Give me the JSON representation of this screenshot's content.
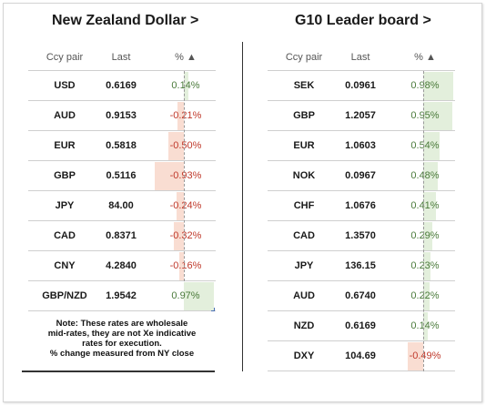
{
  "left": {
    "title": "New Zealand Dollar >",
    "headers": {
      "pair": "Ccy pair",
      "last": "Last",
      "pct": "% ▲"
    },
    "rows": [
      {
        "pair": "USD",
        "last": "0.6169",
        "pct": "0.14%",
        "value": 0.14
      },
      {
        "pair": "AUD",
        "last": "0.9153",
        "pct": "-0.21%",
        "value": -0.21
      },
      {
        "pair": "EUR",
        "last": "0.5818",
        "pct": "-0.50%",
        "value": -0.5
      },
      {
        "pair": "GBP",
        "last": "0.5116",
        "pct": "-0.93%",
        "value": -0.93
      },
      {
        "pair": "JPY",
        "last": "84.00",
        "pct": "-0.24%",
        "value": -0.24
      },
      {
        "pair": "CAD",
        "last": "0.8371",
        "pct": "-0.32%",
        "value": -0.32
      },
      {
        "pair": "CNY",
        "last": "4.2840",
        "pct": "-0.16%",
        "value": -0.16
      },
      {
        "pair": "GBP/NZD",
        "last": "1.9542",
        "pct": "0.97%",
        "value": 0.97
      }
    ],
    "note": {
      "line1": "Note: These rates are wholesale",
      "line2": "mid-rates, they are not Xe indicative",
      "line3": "rates for execution.",
      "line4": "% change measured from NY close"
    }
  },
  "right": {
    "title": "G10 Leader board >",
    "headers": {
      "pair": "Ccy pair",
      "last": "Last",
      "pct": "% ▲"
    },
    "rows": [
      {
        "pair": "SEK",
        "last": "0.0961",
        "pct": "0.98%",
        "value": 0.98
      },
      {
        "pair": "GBP",
        "last": "1.2057",
        "pct": "0.95%",
        "value": 0.95
      },
      {
        "pair": "EUR",
        "last": "1.0603",
        "pct": "0.54%",
        "value": 0.54
      },
      {
        "pair": "NOK",
        "last": "0.0967",
        "pct": "0.48%",
        "value": 0.48
      },
      {
        "pair": "CHF",
        "last": "1.0676",
        "pct": "0.41%",
        "value": 0.41
      },
      {
        "pair": "CAD",
        "last": "1.3570",
        "pct": "0.29%",
        "value": 0.29
      },
      {
        "pair": "JPY",
        "last": "136.15",
        "pct": "0.23%",
        "value": 0.23
      },
      {
        "pair": "AUD",
        "last": "0.6740",
        "pct": "0.22%",
        "value": 0.22
      },
      {
        "pair": "NZD",
        "last": "0.6169",
        "pct": "0.14%",
        "value": 0.14
      },
      {
        "pair": "DXY",
        "last": "104.69",
        "pct": "-0.49%",
        "value": -0.49
      }
    ]
  },
  "colors": {
    "positive_bar": "#e3efdc",
    "negative_bar": "#f9ddd2",
    "positive_text": "#4a7a3a",
    "negative_text": "#c0392b"
  }
}
